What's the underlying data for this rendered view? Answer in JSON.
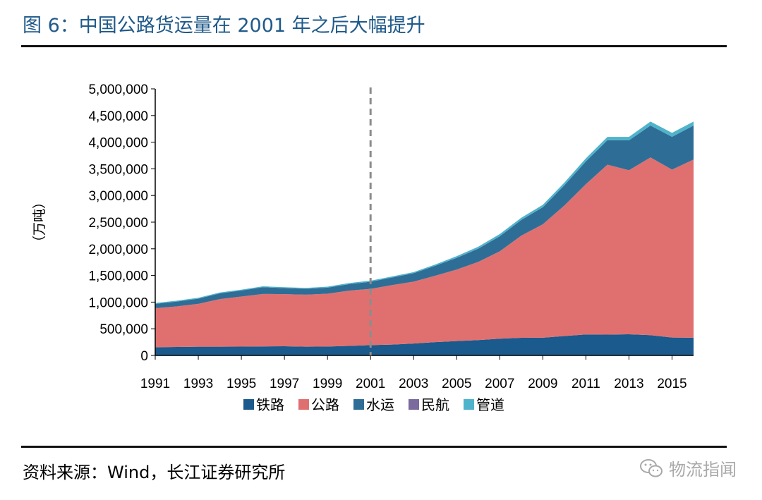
{
  "header": {
    "title": "图 6：中国公路货运量在 2001 年之后大幅提升"
  },
  "footer": {
    "source": "资料来源：Wind，长江证券研究所",
    "watermark": "物流指闻"
  },
  "chart_data": {
    "type": "area",
    "stacked": true,
    "title": "",
    "ylabel": "（万吨）",
    "xlabel": "",
    "ylim": [
      0,
      5000000
    ],
    "yticks": [
      "0",
      "500,000",
      "1,000,000",
      "1,500,000",
      "2,000,000",
      "2,500,000",
      "3,000,000",
      "3,500,000",
      "4,000,000",
      "4,500,000",
      "5,000,000"
    ],
    "x": [
      1991,
      1992,
      1993,
      1994,
      1995,
      1996,
      1997,
      1998,
      1999,
      2000,
      2001,
      2002,
      2003,
      2004,
      2005,
      2006,
      2007,
      2008,
      2009,
      2010,
      2011,
      2012,
      2013,
      2014,
      2015,
      2016
    ],
    "xtick_labels": [
      "1991",
      "1993",
      "1995",
      "1997",
      "1999",
      "2001",
      "2003",
      "2005",
      "2007",
      "2009",
      "2011",
      "2013",
      "2015"
    ],
    "reference_line_x": 2001,
    "legend_position": "bottom",
    "series": [
      {
        "name": "铁路",
        "color": "#1a5a8c",
        "values": [
          153000,
          158000,
          163000,
          163000,
          165000,
          169000,
          172000,
          164000,
          167000,
          178000,
          193000,
          204000,
          224000,
          249000,
          269000,
          288000,
          314000,
          330000,
          333000,
          364000,
          393000,
          390000,
          397000,
          381000,
          336000,
          333000
        ]
      },
      {
        "name": "公路",
        "color": "#e07070",
        "values": [
          734000,
          762000,
          804000,
          894000,
          940000,
          984000,
          977000,
          976000,
          990000,
          1038000,
          1056000,
          1116000,
          1160000,
          1245000,
          1342000,
          1466000,
          1639000,
          1917000,
          2128000,
          2448000,
          2820000,
          3188000,
          3077000,
          3333000,
          3150000,
          3341000
        ]
      },
      {
        "name": "水运",
        "color": "#2e6e96",
        "values": [
          80000,
          91000,
          98000,
          107000,
          113000,
          127000,
          114000,
          110000,
          115000,
          122000,
          133000,
          142000,
          158000,
          187000,
          220000,
          249000,
          282000,
          295000,
          319000,
          379000,
          426000,
          459000,
          560000,
          598000,
          614000,
          638000
        ]
      },
      {
        "name": "民航",
        "color": "#7a6a9e",
        "values": [
          45,
          66,
          70,
          83,
          101,
          115,
          125,
          140,
          170,
          197,
          171,
          202,
          219,
          277,
          307,
          349,
          402,
          408,
          446,
          563,
          553,
          545,
          561,
          594,
          629,
          668
        ]
      },
      {
        "name": "管道",
        "color": "#4fb3cc",
        "values": [
          16000,
          16000,
          16000,
          16000,
          15000,
          16000,
          16000,
          17000,
          17000,
          19000,
          20000,
          20000,
          21000,
          24000,
          31000,
          36000,
          41000,
          40000,
          45000,
          50000,
          58000,
          62000,
          65000,
          74000,
          75000,
          74000
        ]
      }
    ]
  }
}
